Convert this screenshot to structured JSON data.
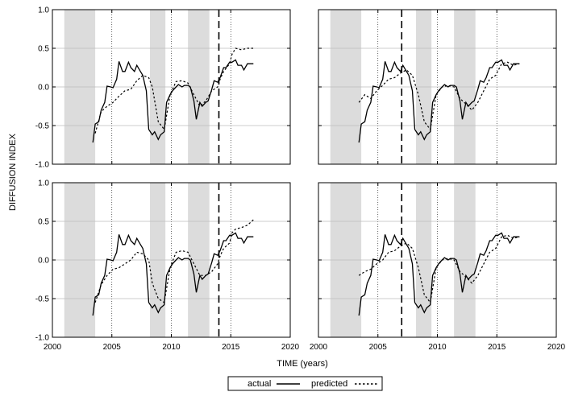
{
  "figure": {
    "ylabel": "DIFFUSION INDEX",
    "xlabel": "TIME (years)",
    "legend": {
      "actual": "actual",
      "predicted": "predicted"
    }
  },
  "chart_data": {
    "type": "line",
    "layout": "2x2",
    "xlim": [
      2000,
      2020
    ],
    "ylim": [
      -1.0,
      1.0
    ],
    "xticks": [
      2000,
      2005,
      2010,
      2015,
      2020
    ],
    "yticks": [
      -1.0,
      -0.5,
      0.0,
      0.5,
      1.0
    ],
    "ytick_labels": [
      "-1.0",
      "-0.5",
      "0.0",
      "0.5",
      "1.0"
    ],
    "grid": true,
    "legend_placement": "bottom-center",
    "recession_bands": [
      [
        2001.0,
        2003.6
      ],
      [
        2008.2,
        2009.5
      ],
      [
        2011.4,
        2013.2
      ]
    ],
    "actual": {
      "name": "actual",
      "x": [
        2003.4,
        2003.6,
        2003.9,
        2004.1,
        2004.4,
        2004.6,
        2004.9,
        2005.1,
        2005.4,
        2005.6,
        2005.9,
        2006.1,
        2006.4,
        2006.6,
        2006.9,
        2007.1,
        2007.4,
        2007.6,
        2007.9,
        2008.1,
        2008.4,
        2008.6,
        2008.9,
        2009.1,
        2009.4,
        2009.6,
        2009.9,
        2010.1,
        2010.4,
        2010.6,
        2010.9,
        2011.1,
        2011.4,
        2011.6,
        2011.9,
        2012.1,
        2012.4,
        2012.6,
        2012.9,
        2013.1,
        2013.4,
        2013.6,
        2013.9,
        2014.1,
        2014.4,
        2014.6,
        2014.9,
        2015.1,
        2015.4,
        2015.6,
        2015.9,
        2016.1,
        2016.4,
        2016.6,
        2016.9
      ],
      "y": [
        -0.72,
        -0.48,
        -0.45,
        -0.3,
        -0.2,
        0.01,
        0.0,
        -0.01,
        0.1,
        0.33,
        0.2,
        0.2,
        0.32,
        0.25,
        0.2,
        0.28,
        0.2,
        0.15,
        -0.05,
        -0.55,
        -0.62,
        -0.58,
        -0.68,
        -0.62,
        -0.58,
        -0.2,
        -0.1,
        -0.05,
        0.0,
        0.03,
        0.0,
        0.02,
        0.02,
        0.0,
        -0.18,
        -0.42,
        -0.2,
        -0.25,
        -0.2,
        -0.18,
        -0.03,
        0.08,
        0.06,
        0.12,
        0.25,
        0.25,
        0.32,
        0.32,
        0.35,
        0.28,
        0.28,
        0.22,
        0.3,
        0.3,
        0.3
      ]
    },
    "panels": [
      {
        "forecast_origin": 2014.0,
        "predicted": {
          "name": "predicted",
          "x": [
            2003.6,
            2004.1,
            2004.6,
            2005.1,
            2005.6,
            2006.1,
            2006.6,
            2007.1,
            2007.6,
            2008.1,
            2008.4,
            2008.9,
            2009.4,
            2009.9,
            2010.4,
            2010.9,
            2011.4,
            2011.9,
            2012.4,
            2012.9,
            2013.4,
            2013.9,
            2014.1,
            2014.4,
            2014.9,
            2015.1,
            2015.4,
            2015.9,
            2016.4,
            2016.9
          ],
          "y": [
            -0.6,
            -0.32,
            -0.25,
            -0.2,
            -0.12,
            -0.05,
            -0.03,
            0.08,
            0.15,
            0.12,
            0.0,
            -0.45,
            -0.55,
            -0.1,
            0.07,
            0.08,
            0.05,
            -0.1,
            -0.25,
            -0.18,
            -0.05,
            0.0,
            0.1,
            0.2,
            0.3,
            0.42,
            0.5,
            0.48,
            0.5,
            0.5
          ]
        }
      },
      {
        "forecast_origin": 2007.0,
        "predicted": {
          "name": "predicted",
          "x": [
            2003.4,
            2003.9,
            2004.4,
            2004.9,
            2005.4,
            2005.9,
            2006.4,
            2006.9,
            2007.4,
            2007.9,
            2008.4,
            2008.9,
            2009.4,
            2009.9,
            2010.4,
            2010.9,
            2011.4,
            2011.9,
            2012.4,
            2012.9,
            2013.4,
            2013.9,
            2014.4,
            2014.9,
            2015.4,
            2015.9,
            2016.4,
            2016.9
          ],
          "y": [
            -0.2,
            -0.1,
            -0.15,
            -0.05,
            0.02,
            0.1,
            0.12,
            0.18,
            0.22,
            0.15,
            -0.1,
            -0.45,
            -0.55,
            -0.1,
            0.0,
            0.02,
            0.0,
            -0.15,
            -0.22,
            -0.3,
            -0.2,
            -0.05,
            0.1,
            0.15,
            0.3,
            0.32,
            0.28,
            0.3
          ]
        }
      },
      {
        "forecast_origin": 2014.0,
        "predicted": {
          "name": "predicted",
          "x": [
            2003.6,
            2004.1,
            2004.6,
            2005.1,
            2005.6,
            2006.1,
            2006.6,
            2007.1,
            2007.6,
            2008.1,
            2008.4,
            2008.9,
            2009.4,
            2009.9,
            2010.4,
            2010.9,
            2011.4,
            2011.9,
            2012.4,
            2012.9,
            2013.4,
            2013.9,
            2014.1,
            2014.4,
            2014.9,
            2015.1,
            2015.4,
            2015.9,
            2016.4,
            2016.9
          ],
          "y": [
            -0.55,
            -0.32,
            -0.2,
            -0.12,
            -0.1,
            -0.05,
            0.0,
            0.1,
            0.08,
            0.0,
            -0.3,
            -0.5,
            -0.55,
            -0.1,
            0.1,
            0.12,
            0.1,
            -0.05,
            -0.2,
            -0.2,
            -0.15,
            -0.05,
            0.05,
            0.15,
            0.22,
            0.35,
            0.4,
            0.42,
            0.45,
            0.52
          ]
        }
      },
      {
        "forecast_origin": 2007.0,
        "predicted": {
          "name": "predicted",
          "x": [
            2003.4,
            2003.9,
            2004.4,
            2004.9,
            2005.4,
            2005.9,
            2006.4,
            2006.9,
            2007.4,
            2007.9,
            2008.4,
            2008.9,
            2009.4,
            2009.9,
            2010.4,
            2010.9,
            2011.4,
            2011.9,
            2012.4,
            2012.9,
            2013.4,
            2013.9,
            2014.4,
            2014.9,
            2015.4,
            2015.9,
            2016.4,
            2016.9
          ],
          "y": [
            -0.2,
            -0.15,
            -0.12,
            -0.05,
            0.0,
            0.1,
            0.12,
            0.18,
            0.22,
            0.15,
            -0.1,
            -0.45,
            -0.55,
            -0.1,
            0.0,
            0.02,
            0.0,
            -0.15,
            -0.22,
            -0.3,
            -0.2,
            -0.05,
            0.1,
            0.15,
            0.3,
            0.32,
            0.28,
            0.3
          ]
        }
      }
    ]
  }
}
